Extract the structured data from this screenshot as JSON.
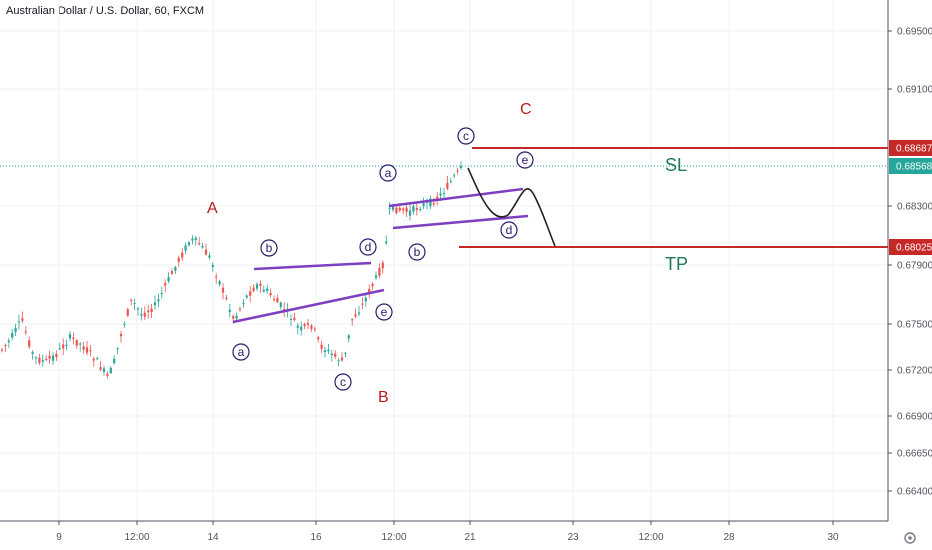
{
  "chart_title": "Australian Dollar / U.S. Dollar, 60, FXCM",
  "colors": {
    "up": "#26a69a",
    "down": "#ef5350",
    "wave_line": "#7e3fc1",
    "level_line": "#c62828",
    "current_price": "#26a69a",
    "path_line": "#222222"
  },
  "chart_data": {
    "type": "candlestick",
    "symbol": "Australian Dollar / U.S. Dollar",
    "interval": "60",
    "source": "FXCM",
    "y_ticks": [
      "0.69500",
      "0.69100",
      "0.68300",
      "0.67900",
      "0.67500",
      "0.67200",
      "0.66900",
      "0.66650",
      "0.66400"
    ],
    "x_ticks": [
      "9",
      "12:00",
      "14",
      "16",
      "12:00",
      "21",
      "23",
      "12:00",
      "28",
      "30"
    ],
    "price_tags": [
      {
        "label": "0.68687",
        "value": 0.68687,
        "color": "#c62828"
      },
      {
        "label": "0.68568",
        "value": 0.68568,
        "color": "#26a69a"
      },
      {
        "label": "0.68025",
        "value": 0.68025,
        "color": "#c62828"
      }
    ],
    "levels": [
      {
        "name": "SL",
        "value": 0.68687
      },
      {
        "name": "TP",
        "value": 0.68025
      }
    ],
    "current_price": 0.68568,
    "wave_labels_major": [
      "A",
      "B",
      "C"
    ],
    "wave_labels_minor": [
      "a",
      "b",
      "c",
      "d",
      "e",
      "a",
      "b",
      "c",
      "d",
      "e",
      "d",
      "e"
    ],
    "grid": true
  }
}
